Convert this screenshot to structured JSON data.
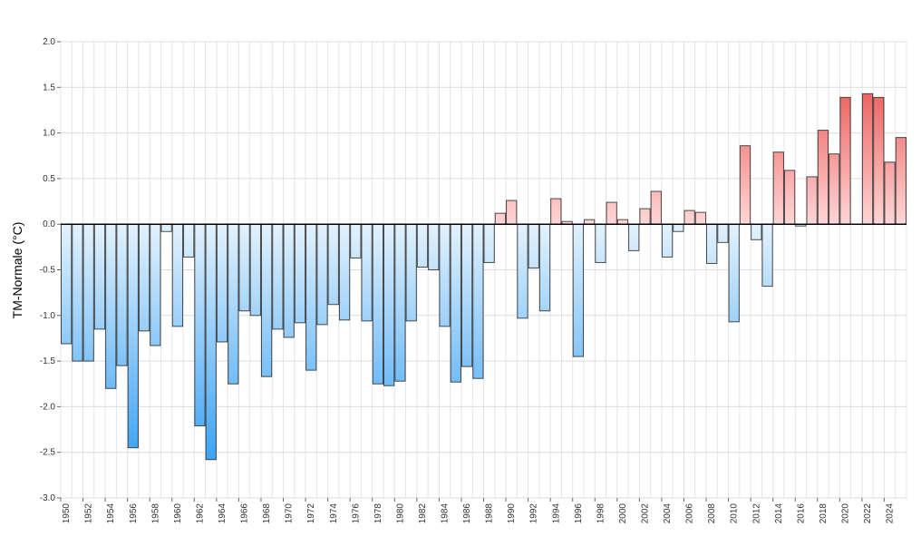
{
  "chart_data": {
    "type": "bar",
    "title": "",
    "xlabel": "",
    "ylabel": "TM-Normale (°C)",
    "ylim": [
      -3.0,
      2.0
    ],
    "yticks": [
      "2.0",
      "1.5",
      "1.0",
      "0.5",
      "0.0",
      "-0.5",
      "-1.0",
      "-1.5",
      "-2.0",
      "-2.5",
      "-3.0"
    ],
    "grid": true,
    "colors": {
      "neg_light": "#e3f2fd",
      "neg_dark": "#2196f3",
      "pos_light": "#ffd6d6",
      "pos_dark": "#e53935",
      "outline": "#222222"
    },
    "x": [
      1950,
      1951,
      1952,
      1953,
      1954,
      1955,
      1956,
      1957,
      1958,
      1959,
      1960,
      1961,
      1962,
      1963,
      1964,
      1965,
      1966,
      1967,
      1968,
      1969,
      1970,
      1971,
      1972,
      1973,
      1974,
      1975,
      1976,
      1977,
      1978,
      1979,
      1980,
      1981,
      1982,
      1983,
      1984,
      1985,
      1986,
      1987,
      1988,
      1989,
      1990,
      1991,
      1992,
      1993,
      1994,
      1995,
      1996,
      1997,
      1998,
      1999,
      2000,
      2001,
      2002,
      2003,
      2004,
      2005,
      2006,
      2007,
      2008,
      2009,
      2010,
      2011,
      2012,
      2013,
      2014,
      2015,
      2016,
      2017,
      2018,
      2019,
      2020,
      2021,
      2022,
      2023,
      2024,
      2025
    ],
    "values": [
      -1.31,
      -1.5,
      -1.5,
      -1.15,
      -1.8,
      -1.55,
      -2.45,
      -1.17,
      -1.33,
      -0.08,
      -1.12,
      -0.36,
      -2.21,
      -2.58,
      -1.29,
      -1.75,
      -0.95,
      -1.0,
      -1.67,
      -1.15,
      -1.24,
      -1.08,
      -1.6,
      -1.1,
      -0.88,
      -1.05,
      -0.37,
      -1.06,
      -1.75,
      -1.77,
      -1.72,
      -1.06,
      -0.47,
      -0.5,
      -1.12,
      -1.73,
      -1.56,
      -1.69,
      -0.42,
      0.12,
      0.26,
      -1.03,
      -0.48,
      -0.95,
      0.28,
      0.03,
      -1.45,
      0.05,
      -0.42,
      0.24,
      0.05,
      -0.29,
      0.17,
      0.36,
      -0.36,
      -0.08,
      0.15,
      0.13,
      -0.43,
      -0.2,
      -1.07,
      0.86,
      -0.17,
      -0.68,
      0.79,
      0.59,
      -0.02,
      0.52,
      1.03,
      0.77,
      1.39,
      null,
      1.43,
      1.39,
      0.68,
      0.95
    ],
    "xtick_labels": [
      "1950",
      "1952",
      "1954",
      "1956",
      "1958",
      "1960",
      "1962",
      "1964",
      "1966",
      "1968",
      "1970",
      "1972",
      "1974",
      "1976",
      "1978",
      "1980",
      "1982",
      "1984",
      "1986",
      "1988",
      "1990",
      "1992",
      "1994",
      "1996",
      "1998",
      "2000",
      "2002",
      "2004",
      "2006",
      "2008",
      "2010",
      "2012",
      "2014",
      "2016",
      "2018",
      "2020",
      "2022",
      "2024"
    ]
  }
}
